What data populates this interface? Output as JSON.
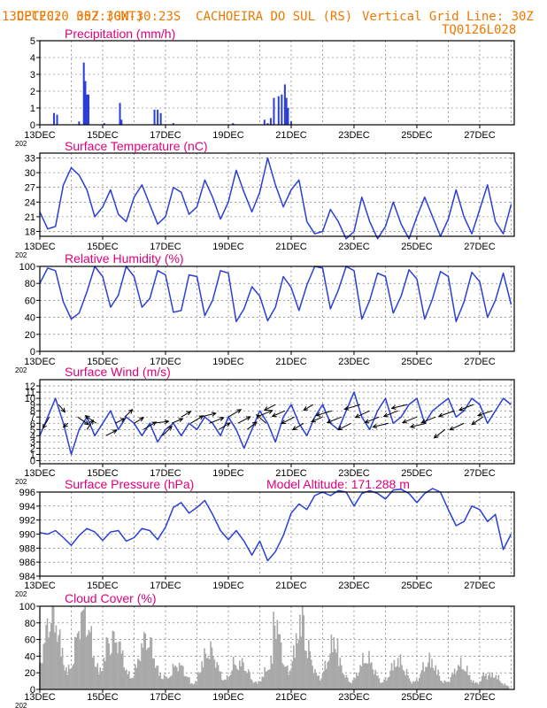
{
  "header": {
    "source": "CPTEC:",
    "coords": "052:30W-30:23S",
    "station": "CACHOEIRA DO SUL (RS)",
    "run_date": "13DEC2020 30Z (GMT)",
    "grid_note": "Vertical Grid Line: 30Z",
    "model_code": "TQ0126L028"
  },
  "colors": {
    "frame": "#000000",
    "title": "#e0007a",
    "line": "#2a3fd8",
    "bar": "#2a3fd8",
    "cloud": "#a8a8a8",
    "header": "#f07800",
    "grid": "#666666"
  },
  "x_axis": {
    "day_range": [
      13.0,
      28.1
    ],
    "tick_labels": [
      "13DEC",
      "15DEC",
      "17DEC",
      "19DEC",
      "21DEC",
      "23DEC",
      "25DEC",
      "27DEC"
    ],
    "tick_days": [
      13,
      15,
      17,
      19,
      21,
      23,
      25,
      27
    ],
    "grid_days": [
      14,
      15,
      16,
      17,
      18,
      19,
      20,
      21,
      22,
      23,
      24,
      25,
      26,
      27,
      28
    ],
    "cut_label": "202"
  },
  "chart_data": [
    {
      "id": "precip",
      "type": "bar",
      "title": "Precipitation (mm/h)",
      "ylim": [
        0,
        5
      ],
      "yticks": [
        0,
        1,
        2,
        3,
        4,
        5
      ],
      "points": [
        [
          13.45,
          0.7
        ],
        [
          13.55,
          0.6
        ],
        [
          14.25,
          0.2
        ],
        [
          14.4,
          3.7
        ],
        [
          14.45,
          2.6
        ],
        [
          14.5,
          1.8
        ],
        [
          14.55,
          1.8
        ],
        [
          15.05,
          0.1
        ],
        [
          15.55,
          1.3
        ],
        [
          15.6,
          0.3
        ],
        [
          16.65,
          0.9
        ],
        [
          16.75,
          0.9
        ],
        [
          16.85,
          0.7
        ],
        [
          17.25,
          0.1
        ],
        [
          19.15,
          0.1
        ],
        [
          20.15,
          0.3
        ],
        [
          20.25,
          0.1
        ],
        [
          20.35,
          0.4
        ],
        [
          20.45,
          1.6
        ],
        [
          20.6,
          1.7
        ],
        [
          20.7,
          1.8
        ],
        [
          20.8,
          2.4
        ],
        [
          20.85,
          1.6
        ],
        [
          20.9,
          1.0
        ],
        [
          21.0,
          0.2
        ]
      ]
    },
    {
      "id": "temp",
      "type": "line",
      "title": "Surface Temperature (nC)",
      "ylim": [
        17,
        34
      ],
      "yticks": [
        18,
        21,
        24,
        27,
        30,
        33
      ],
      "x": [
        13.0,
        13.25,
        13.5,
        13.75,
        14.0,
        14.25,
        14.5,
        14.75,
        15.0,
        15.25,
        15.5,
        15.75,
        16.0,
        16.25,
        16.5,
        16.75,
        17.0,
        17.25,
        17.5,
        17.75,
        18.0,
        18.25,
        18.5,
        18.75,
        19.0,
        19.25,
        19.5,
        19.75,
        20.0,
        20.25,
        20.5,
        20.75,
        21.0,
        21.25,
        21.5,
        21.75,
        22.0,
        22.25,
        22.5,
        22.75,
        23.0,
        23.25,
        23.5,
        23.75,
        24.0,
        24.25,
        24.5,
        24.75,
        25.0,
        25.25,
        25.5,
        25.75,
        26.0,
        26.25,
        26.5,
        26.75,
        27.0,
        27.25,
        27.5,
        27.75,
        28.0
      ],
      "y": [
        22,
        18.5,
        19,
        27.5,
        31,
        29.5,
        26.5,
        21,
        23,
        26.5,
        21.5,
        20,
        25,
        27.5,
        23.5,
        19.5,
        21,
        27,
        26,
        21.5,
        23,
        28.5,
        25,
        20.5,
        24,
        30.5,
        26,
        22,
        26,
        33,
        27.5,
        23,
        26.5,
        28.5,
        20,
        17.5,
        18,
        22.5,
        20,
        16.5,
        18,
        25,
        20,
        16.5,
        19,
        24,
        19.5,
        16.5,
        21,
        25,
        21,
        17,
        20.5,
        26.5,
        21,
        17.5,
        22.5,
        27.5,
        20,
        17.5,
        23.5
      ]
    },
    {
      "id": "rh",
      "type": "line",
      "title": "Relative Humidity (%)",
      "ylim": [
        0,
        100
      ],
      "yticks": [
        0,
        20,
        40,
        60,
        80,
        100
      ],
      "x": [
        13.0,
        13.25,
        13.5,
        13.75,
        14.0,
        14.25,
        14.5,
        14.75,
        15.0,
        15.25,
        15.5,
        15.75,
        16.0,
        16.25,
        16.5,
        16.75,
        17.0,
        17.25,
        17.5,
        17.75,
        18.0,
        18.25,
        18.5,
        18.75,
        19.0,
        19.25,
        19.5,
        19.75,
        20.0,
        20.25,
        20.5,
        20.75,
        21.0,
        21.25,
        21.5,
        21.75,
        22.0,
        22.25,
        22.5,
        22.75,
        23.0,
        23.25,
        23.5,
        23.75,
        24.0,
        24.25,
        24.5,
        24.75,
        25.0,
        25.25,
        25.5,
        25.75,
        26.0,
        26.25,
        26.5,
        26.75,
        27.0,
        27.25,
        27.5,
        27.75,
        28.0
      ],
      "y": [
        80,
        98,
        95,
        58,
        38,
        45,
        70,
        100,
        88,
        52,
        66,
        100,
        88,
        52,
        62,
        95,
        90,
        46,
        48,
        90,
        88,
        42,
        60,
        95,
        92,
        35,
        50,
        76,
        65,
        36,
        52,
        88,
        75,
        48,
        78,
        100,
        98,
        50,
        72,
        100,
        95,
        38,
        60,
        92,
        88,
        45,
        65,
        96,
        85,
        38,
        62,
        94,
        88,
        35,
        58,
        93,
        82,
        40,
        60,
        92,
        55
      ]
    },
    {
      "id": "wind",
      "type": "line",
      "title": "Surface Wind (m/s)",
      "ylim": [
        -0.5,
        13
      ],
      "yticks": [
        0,
        1,
        2,
        3,
        4,
        5,
        6,
        7,
        8,
        9,
        10,
        11,
        12
      ],
      "x": [
        13.0,
        13.25,
        13.5,
        13.75,
        14.0,
        14.25,
        14.5,
        14.75,
        15.0,
        15.25,
        15.5,
        15.75,
        16.0,
        16.25,
        16.5,
        16.75,
        17.0,
        17.25,
        17.5,
        17.75,
        18.0,
        18.25,
        18.5,
        18.75,
        19.0,
        19.25,
        19.5,
        19.75,
        20.0,
        20.25,
        20.5,
        20.75,
        21.0,
        21.25,
        21.5,
        21.75,
        22.0,
        22.25,
        22.5,
        22.75,
        23.0,
        23.25,
        23.5,
        23.75,
        24.0,
        24.25,
        24.5,
        24.75,
        25.0,
        25.25,
        25.5,
        25.75,
        26.0,
        26.25,
        26.5,
        26.75,
        27.0,
        27.25,
        27.5,
        27.75,
        28.0
      ],
      "y": [
        4,
        7,
        10,
        6,
        1,
        5,
        7,
        4,
        6,
        8,
        5,
        7,
        6,
        4,
        6,
        3,
        5,
        6,
        4,
        6,
        5,
        7,
        6,
        4,
        7,
        5,
        2,
        5,
        8,
        6,
        3,
        7,
        9,
        6,
        4,
        7,
        9,
        6,
        5,
        8,
        11,
        7,
        5,
        8,
        10,
        6,
        7,
        9,
        10,
        6,
        8,
        9,
        10,
        7,
        8,
        10,
        9,
        6,
        8,
        10,
        9
      ],
      "arrows": [
        [
          13.3,
          7,
          -0.2,
          -0.6
        ],
        [
          13.6,
          9,
          0.2,
          -0.4
        ],
        [
          13.9,
          6,
          -0.15,
          -0.2
        ],
        [
          14.2,
          7,
          0.35,
          -0.4
        ],
        [
          14.5,
          5,
          0.2,
          0.5
        ],
        [
          14.8,
          6,
          -0.35,
          0.4
        ],
        [
          15.1,
          4,
          0.35,
          0.3
        ],
        [
          15.4,
          6,
          0.3,
          0.25
        ],
        [
          15.7,
          7,
          0.25,
          0.4
        ],
        [
          16.0,
          6,
          0.3,
          0.3
        ],
        [
          16.3,
          5,
          0.4,
          0.4
        ],
        [
          16.6,
          6,
          0.5,
          0.1
        ],
        [
          16.9,
          4,
          0.3,
          0.5
        ],
        [
          17.2,
          6,
          0.35,
          0.25
        ],
        [
          17.5,
          7,
          0.3,
          0.3
        ],
        [
          17.8,
          6,
          0.4,
          0.4
        ],
        [
          18.1,
          7,
          0.5,
          0.2
        ],
        [
          18.4,
          6,
          0.45,
          0.3
        ],
        [
          18.7,
          5,
          0.35,
          0.35
        ],
        [
          19.0,
          7,
          0.4,
          0.4
        ],
        [
          19.3,
          6,
          0.4,
          0.35
        ],
        [
          19.6,
          5,
          0.3,
          0.4
        ],
        [
          19.9,
          7,
          0.5,
          0.35
        ],
        [
          20.2,
          6,
          -0.3,
          0.45
        ],
        [
          20.5,
          9,
          -0.35,
          -0.3
        ],
        [
          20.8,
          8,
          -0.4,
          -0.3
        ],
        [
          21.1,
          7,
          -0.4,
          -0.35
        ],
        [
          21.4,
          6,
          -0.35,
          -0.35
        ],
        [
          21.7,
          9,
          -0.3,
          -0.3
        ],
        [
          22.0,
          7,
          -0.35,
          -0.25
        ],
        [
          22.3,
          8,
          -0.5,
          -0.25
        ],
        [
          22.6,
          7,
          -0.45,
          -0.3
        ],
        [
          22.9,
          6,
          -0.4,
          -0.35
        ],
        [
          23.2,
          9,
          -0.5,
          -0.25
        ],
        [
          23.5,
          8,
          -0.45,
          -0.35
        ],
        [
          23.8,
          7,
          -0.45,
          -0.3
        ],
        [
          24.1,
          6,
          -0.5,
          -0.2
        ],
        [
          24.4,
          8,
          -0.45,
          -0.3
        ],
        [
          24.7,
          9,
          -0.5,
          -0.2
        ],
        [
          25.0,
          7,
          -0.45,
          -0.3
        ],
        [
          25.3,
          6,
          -0.5,
          -0.2
        ],
        [
          25.6,
          7,
          -0.45,
          -0.3
        ],
        [
          25.9,
          5,
          -0.35,
          -0.45
        ],
        [
          26.2,
          8,
          -0.5,
          -0.3
        ],
        [
          26.5,
          6,
          -0.45,
          -0.35
        ],
        [
          26.8,
          9,
          -0.45,
          -0.3
        ],
        [
          27.1,
          7,
          -0.35,
          -0.4
        ],
        [
          27.4,
          8,
          -0.45,
          -0.25
        ]
      ]
    },
    {
      "id": "press",
      "type": "line",
      "title": "Surface Pressure (hPa)",
      "ylim": [
        984,
        996
      ],
      "yticks": [
        984,
        986,
        988,
        990,
        992,
        994,
        996
      ],
      "annotation": "Model Altitude: 171.288 m",
      "x": [
        13.0,
        13.25,
        13.5,
        13.75,
        14.0,
        14.25,
        14.5,
        14.75,
        15.0,
        15.25,
        15.5,
        15.75,
        16.0,
        16.25,
        16.5,
        16.75,
        17.0,
        17.25,
        17.5,
        17.75,
        18.0,
        18.25,
        18.5,
        18.75,
        19.0,
        19.25,
        19.5,
        19.75,
        20.0,
        20.25,
        20.5,
        20.75,
        21.0,
        21.25,
        21.5,
        21.75,
        22.0,
        22.25,
        22.5,
        22.75,
        23.0,
        23.25,
        23.5,
        23.75,
        24.0,
        24.25,
        24.5,
        24.75,
        25.0,
        25.25,
        25.5,
        25.75,
        26.0,
        26.25,
        26.5,
        26.75,
        27.0,
        27.25,
        27.5,
        27.75,
        28.0
      ],
      "y": [
        990.2,
        990.0,
        990.5,
        989.5,
        988.4,
        989.8,
        990.8,
        990.3,
        989.1,
        990.3,
        990.5,
        989.0,
        989.5,
        990.8,
        990.5,
        989.2,
        991.0,
        993.8,
        994.5,
        993.0,
        993.8,
        994.8,
        992.8,
        990.5,
        989.2,
        990.5,
        989.0,
        987.0,
        989.0,
        986.2,
        987.5,
        989.8,
        993.0,
        994.3,
        993.5,
        995.5,
        996.0,
        995.5,
        996.2,
        996.0,
        994.0,
        995.8,
        996.2,
        995.8,
        995.0,
        996.3,
        996.4,
        995.8,
        994.5,
        995.8,
        996.5,
        996.0,
        993.5,
        991.2,
        991.8,
        994.0,
        993.5,
        991.8,
        992.8,
        987.8,
        990.0
      ]
    },
    {
      "id": "cloud",
      "type": "bar",
      "title": "Cloud Cover (%)",
      "ylim": [
        0,
        100
      ],
      "yticks": [
        0,
        20,
        40,
        60,
        80,
        100
      ]
    }
  ]
}
